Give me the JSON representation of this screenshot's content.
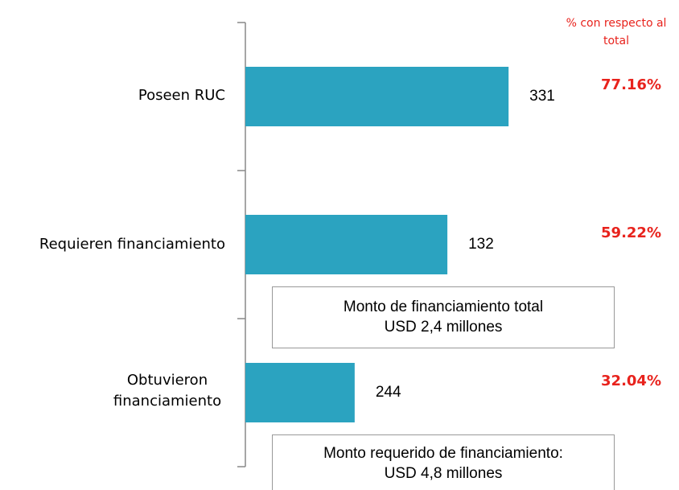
{
  "chart_data": {
    "type": "bar",
    "orientation": "horizontal",
    "header": "% con respecto al total",
    "categories": [
      "Poseen RUC",
      "Requieren financiamiento",
      "Obtuvieron financiamiento"
    ],
    "values": [
      77.16,
      59.22,
      32.04
    ],
    "value_labels": [
      "77.16%",
      "59.22%",
      "32.04%"
    ],
    "counts": [
      331,
      132,
      244
    ],
    "color": "#2ba3c0",
    "xlim": [
      0,
      100
    ],
    "annotations": [
      {
        "lines": [
          "Monto de financiamiento total",
          "USD 2,4 millones"
        ]
      },
      {
        "lines": [
          "Monto requerido de  financiamiento:",
          "USD  4,8 millones"
        ]
      }
    ]
  }
}
